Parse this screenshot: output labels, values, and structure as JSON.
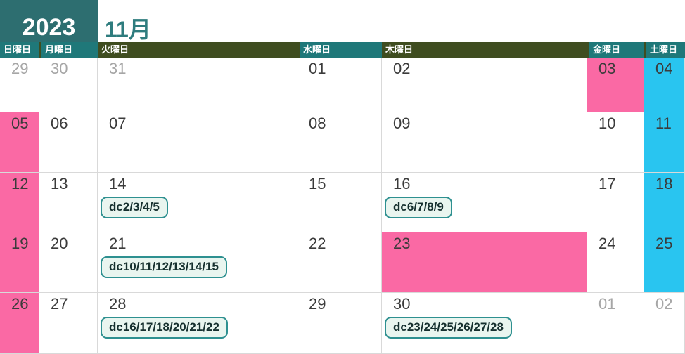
{
  "title": {
    "year": "2023",
    "month_label": "11月"
  },
  "colors": {
    "teal": "#2D6E70",
    "teal_chip": "#1F7879",
    "teal_text": "#2E7C7E",
    "olive": "#3F4D20",
    "holiday_pink": "#FA69A4",
    "saturday_blue": "#29C5F0",
    "grid_line": "#D9D9D9",
    "date_text": "#3B3B3B",
    "muted_text": "#A6A6A6",
    "badge_border": "#2E9090",
    "badge_bg": "#E9F5EF",
    "badge_text": "#16302F"
  },
  "weekday_headers": [
    {
      "label": "日曜日",
      "variant": "teal"
    },
    {
      "label": "月曜日",
      "variant": "teal"
    },
    {
      "label": "火曜日",
      "variant": "olive"
    },
    {
      "label": "水曜日",
      "variant": "teal"
    },
    {
      "label": "木曜日",
      "variant": "olive"
    },
    {
      "label": "金曜日",
      "variant": "teal"
    },
    {
      "label": "土曜日",
      "variant": "teal"
    }
  ],
  "weeks": [
    {
      "days": [
        {
          "date": "29",
          "muted": true
        },
        {
          "date": "30",
          "muted": true
        },
        {
          "date": "31",
          "muted": true
        },
        {
          "date": "01"
        },
        {
          "date": "02"
        },
        {
          "date": "03",
          "highlight": "pink"
        },
        {
          "date": "04",
          "highlight": "blue"
        }
      ]
    },
    {
      "days": [
        {
          "date": "05",
          "highlight": "pink"
        },
        {
          "date": "06"
        },
        {
          "date": "07"
        },
        {
          "date": "08"
        },
        {
          "date": "09"
        },
        {
          "date": "10"
        },
        {
          "date": "11",
          "highlight": "blue"
        }
      ]
    },
    {
      "days": [
        {
          "date": "12",
          "highlight": "pink"
        },
        {
          "date": "13"
        },
        {
          "date": "14",
          "badge": "dc2/3/4/5"
        },
        {
          "date": "15"
        },
        {
          "date": "16",
          "badge": "dc6/7/8/9"
        },
        {
          "date": "17"
        },
        {
          "date": "18",
          "highlight": "blue"
        }
      ]
    },
    {
      "days": [
        {
          "date": "19",
          "highlight": "pink"
        },
        {
          "date": "20"
        },
        {
          "date": "21",
          "badge": "dc10/11/12/13/14/15"
        },
        {
          "date": "22"
        },
        {
          "date": "23",
          "highlight": "pink"
        },
        {
          "date": "24"
        },
        {
          "date": "25",
          "highlight": "blue"
        }
      ]
    },
    {
      "days": [
        {
          "date": "26",
          "highlight": "pink"
        },
        {
          "date": "27"
        },
        {
          "date": "28",
          "badge": "dc16/17/18/20/21/22"
        },
        {
          "date": "29"
        },
        {
          "date": "30",
          "badge": "dc23/24/25/26/27/28"
        },
        {
          "date": "01",
          "muted": true
        },
        {
          "date": "02",
          "muted": true
        }
      ]
    }
  ]
}
